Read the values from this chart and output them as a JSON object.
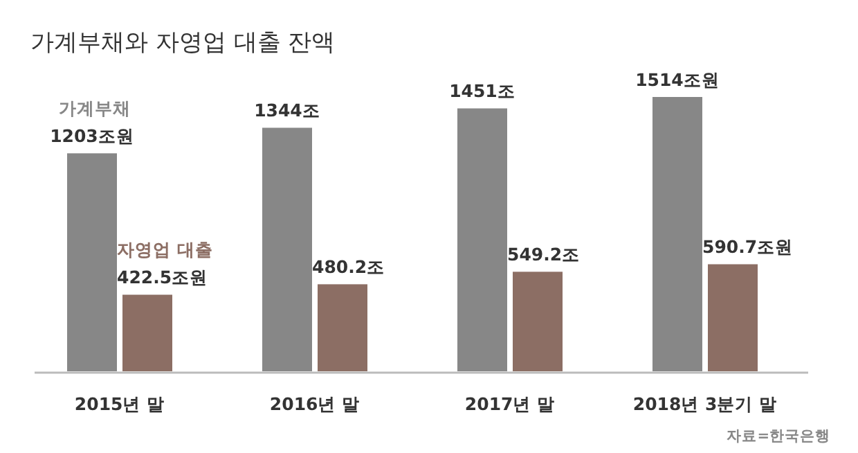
{
  "chart_data": {
    "type": "bar",
    "title": "가계부채와 자영업 대출 잔액",
    "categories": [
      "2015년 말",
      "2016년 말",
      "2017년 말",
      "2018년 3분기 말"
    ],
    "series": [
      {
        "name": "가계부채",
        "color": "#878787",
        "values": [
          1203,
          1344,
          1451,
          1514
        ],
        "value_labels": [
          "1203조원",
          "1344조",
          "1451조",
          "1514조원"
        ]
      },
      {
        "name": "자영업 대출",
        "color": "#8c6e64",
        "values": [
          422.5,
          480.2,
          549.2,
          590.7
        ],
        "value_labels": [
          "422.5조원",
          "480.2조",
          "549.2조",
          "590.7조원"
        ]
      }
    ],
    "tick_labels": "x",
    "legend": false,
    "annotations": [
      "자료=한국은행"
    ]
  }
}
